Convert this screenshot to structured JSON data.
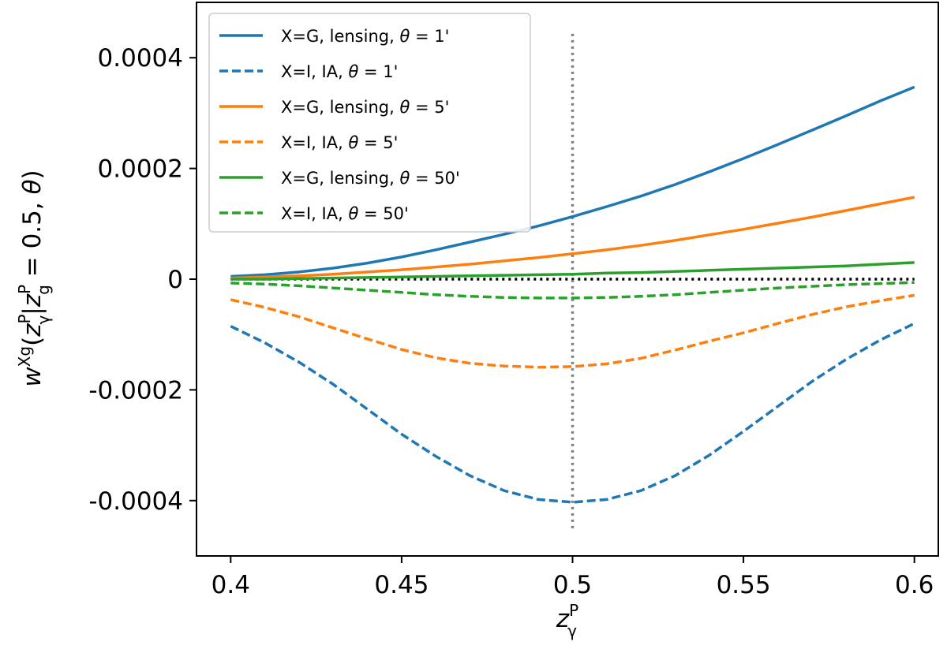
{
  "chart_data": {
    "type": "line",
    "xlabel": "z_γ^P",
    "ylabel": "w^{Xg}(z_γ^P | z_g^P = 0.5, θ)",
    "xlim": [
      0.39,
      0.607
    ],
    "ylim": [
      -0.0005,
      0.0005
    ],
    "x_ticks": [
      0.4,
      0.45,
      0.5,
      0.55,
      0.6
    ],
    "x_tick_labels": [
      "0.4",
      "0.45",
      "0.5",
      "0.55",
      "0.6"
    ],
    "y_ticks": [
      -0.0004,
      -0.0002,
      0,
      0.0002,
      0.0004
    ],
    "y_tick_labels": [
      "-0.0004",
      "-0.0002",
      "0",
      "0.0002",
      "0.0004"
    ],
    "legend_location": "upper-left",
    "x": [
      0.4,
      0.41,
      0.42,
      0.43,
      0.44,
      0.45,
      0.46,
      0.47,
      0.48,
      0.49,
      0.5,
      0.51,
      0.52,
      0.53,
      0.54,
      0.55,
      0.56,
      0.57,
      0.58,
      0.59,
      0.6
    ],
    "series": [
      {
        "name": "X=G, lensing, θ = 1'",
        "label": {
          "prefix": "X=G, lensing, ",
          "theta": "θ",
          "suffix": " = 1'"
        },
        "color": "#1f77b4",
        "style": "solid",
        "values": [
          5e-06,
          8e-06,
          1.3e-05,
          2e-05,
          2.9e-05,
          4e-05,
          5.3e-05,
          6.7e-05,
          8.1e-05,
          9.6e-05,
          0.000113,
          0.000131,
          0.00015,
          0.000171,
          0.000194,
          0.000218,
          0.000243,
          0.000269,
          0.000295,
          0.000322,
          0.000347
        ]
      },
      {
        "name": "X=I, IA, θ = 1'",
        "label": {
          "prefix": "X=I, IA, ",
          "theta": "θ",
          "suffix": " = 1'"
        },
        "color": "#1f77b4",
        "style": "dashed",
        "values": [
          -8.5e-05,
          -0.000115,
          -0.00015,
          -0.00019,
          -0.000235,
          -0.00028,
          -0.00032,
          -0.000355,
          -0.000382,
          -0.000398,
          -0.000403,
          -0.000398,
          -0.000382,
          -0.000355,
          -0.000318,
          -0.000275,
          -0.00023,
          -0.000185,
          -0.000145,
          -0.00011,
          -8e-05
        ]
      },
      {
        "name": "X=G, lensing, θ = 5'",
        "label": {
          "prefix": "X=G, lensing, ",
          "theta": "θ",
          "suffix": " = 5'"
        },
        "color": "#ff7f0e",
        "style": "solid",
        "values": [
          2e-06,
          4e-06,
          6e-06,
          9e-06,
          1.3e-05,
          1.7e-05,
          2.2e-05,
          2.7e-05,
          3.3e-05,
          3.9e-05,
          4.6e-05,
          5.3e-05,
          6.1e-05,
          7e-05,
          8e-05,
          9e-05,
          0.000101,
          0.000112,
          0.000124,
          0.000136,
          0.000148
        ]
      },
      {
        "name": "X=I, IA, θ = 5'",
        "label": {
          "prefix": "X=I, IA, ",
          "theta": "θ",
          "suffix": " = 5'"
        },
        "color": "#ff7f0e",
        "style": "dashed",
        "values": [
          -3.7e-05,
          -5.1e-05,
          -6.8e-05,
          -8.8e-05,
          -0.000108,
          -0.000127,
          -0.000142,
          -0.000152,
          -0.000157,
          -0.000159,
          -0.000158,
          -0.000153,
          -0.000143,
          -0.000128,
          -0.000112,
          -9.7e-05,
          -8e-05,
          -6.4e-05,
          -5e-05,
          -3.9e-05,
          -2.9e-05
        ]
      },
      {
        "name": "X=G, lensing, θ = 50'",
        "label": {
          "prefix": "X=G, lensing, ",
          "theta": "θ",
          "suffix": " = 50'"
        },
        "color": "#2ca02c",
        "style": "solid",
        "values": [
          0.0,
          0.0,
          1e-06,
          2e-06,
          3e-06,
          4e-06,
          5e-06,
          6e-06,
          7e-06,
          8e-06,
          9e-06,
          1.1e-05,
          1.2e-05,
          1.4e-05,
          1.6e-05,
          1.8e-05,
          2e-05,
          2.2e-05,
          2.4e-05,
          2.7e-05,
          3e-05
        ]
      },
      {
        "name": "X=I, IA, θ = 50'",
        "label": {
          "prefix": "X=I, IA, ",
          "theta": "θ",
          "suffix": " = 50'"
        },
        "color": "#2ca02c",
        "style": "dashed",
        "values": [
          -7e-06,
          -9e-06,
          -1.2e-05,
          -1.6e-05,
          -2e-05,
          -2.4e-05,
          -2.8e-05,
          -3.1e-05,
          -3.3e-05,
          -3.4e-05,
          -3.4e-05,
          -3.3e-05,
          -3.1e-05,
          -2.8e-05,
          -2.4e-05,
          -2e-05,
          -1.6e-05,
          -1.3e-05,
          -1e-05,
          -8e-06,
          -6e-06
        ]
      }
    ],
    "reference_lines": [
      {
        "name": "zero-line",
        "orientation": "horizontal",
        "value": 0,
        "x_range": [
          0.4,
          0.6
        ],
        "color": "#000000",
        "style": "dotted"
      },
      {
        "name": "z-0.5-line",
        "orientation": "vertical",
        "value": 0.5,
        "y_range": [
          -0.00045,
          0.00045
        ],
        "color": "#808080",
        "style": "dotted"
      }
    ]
  }
}
